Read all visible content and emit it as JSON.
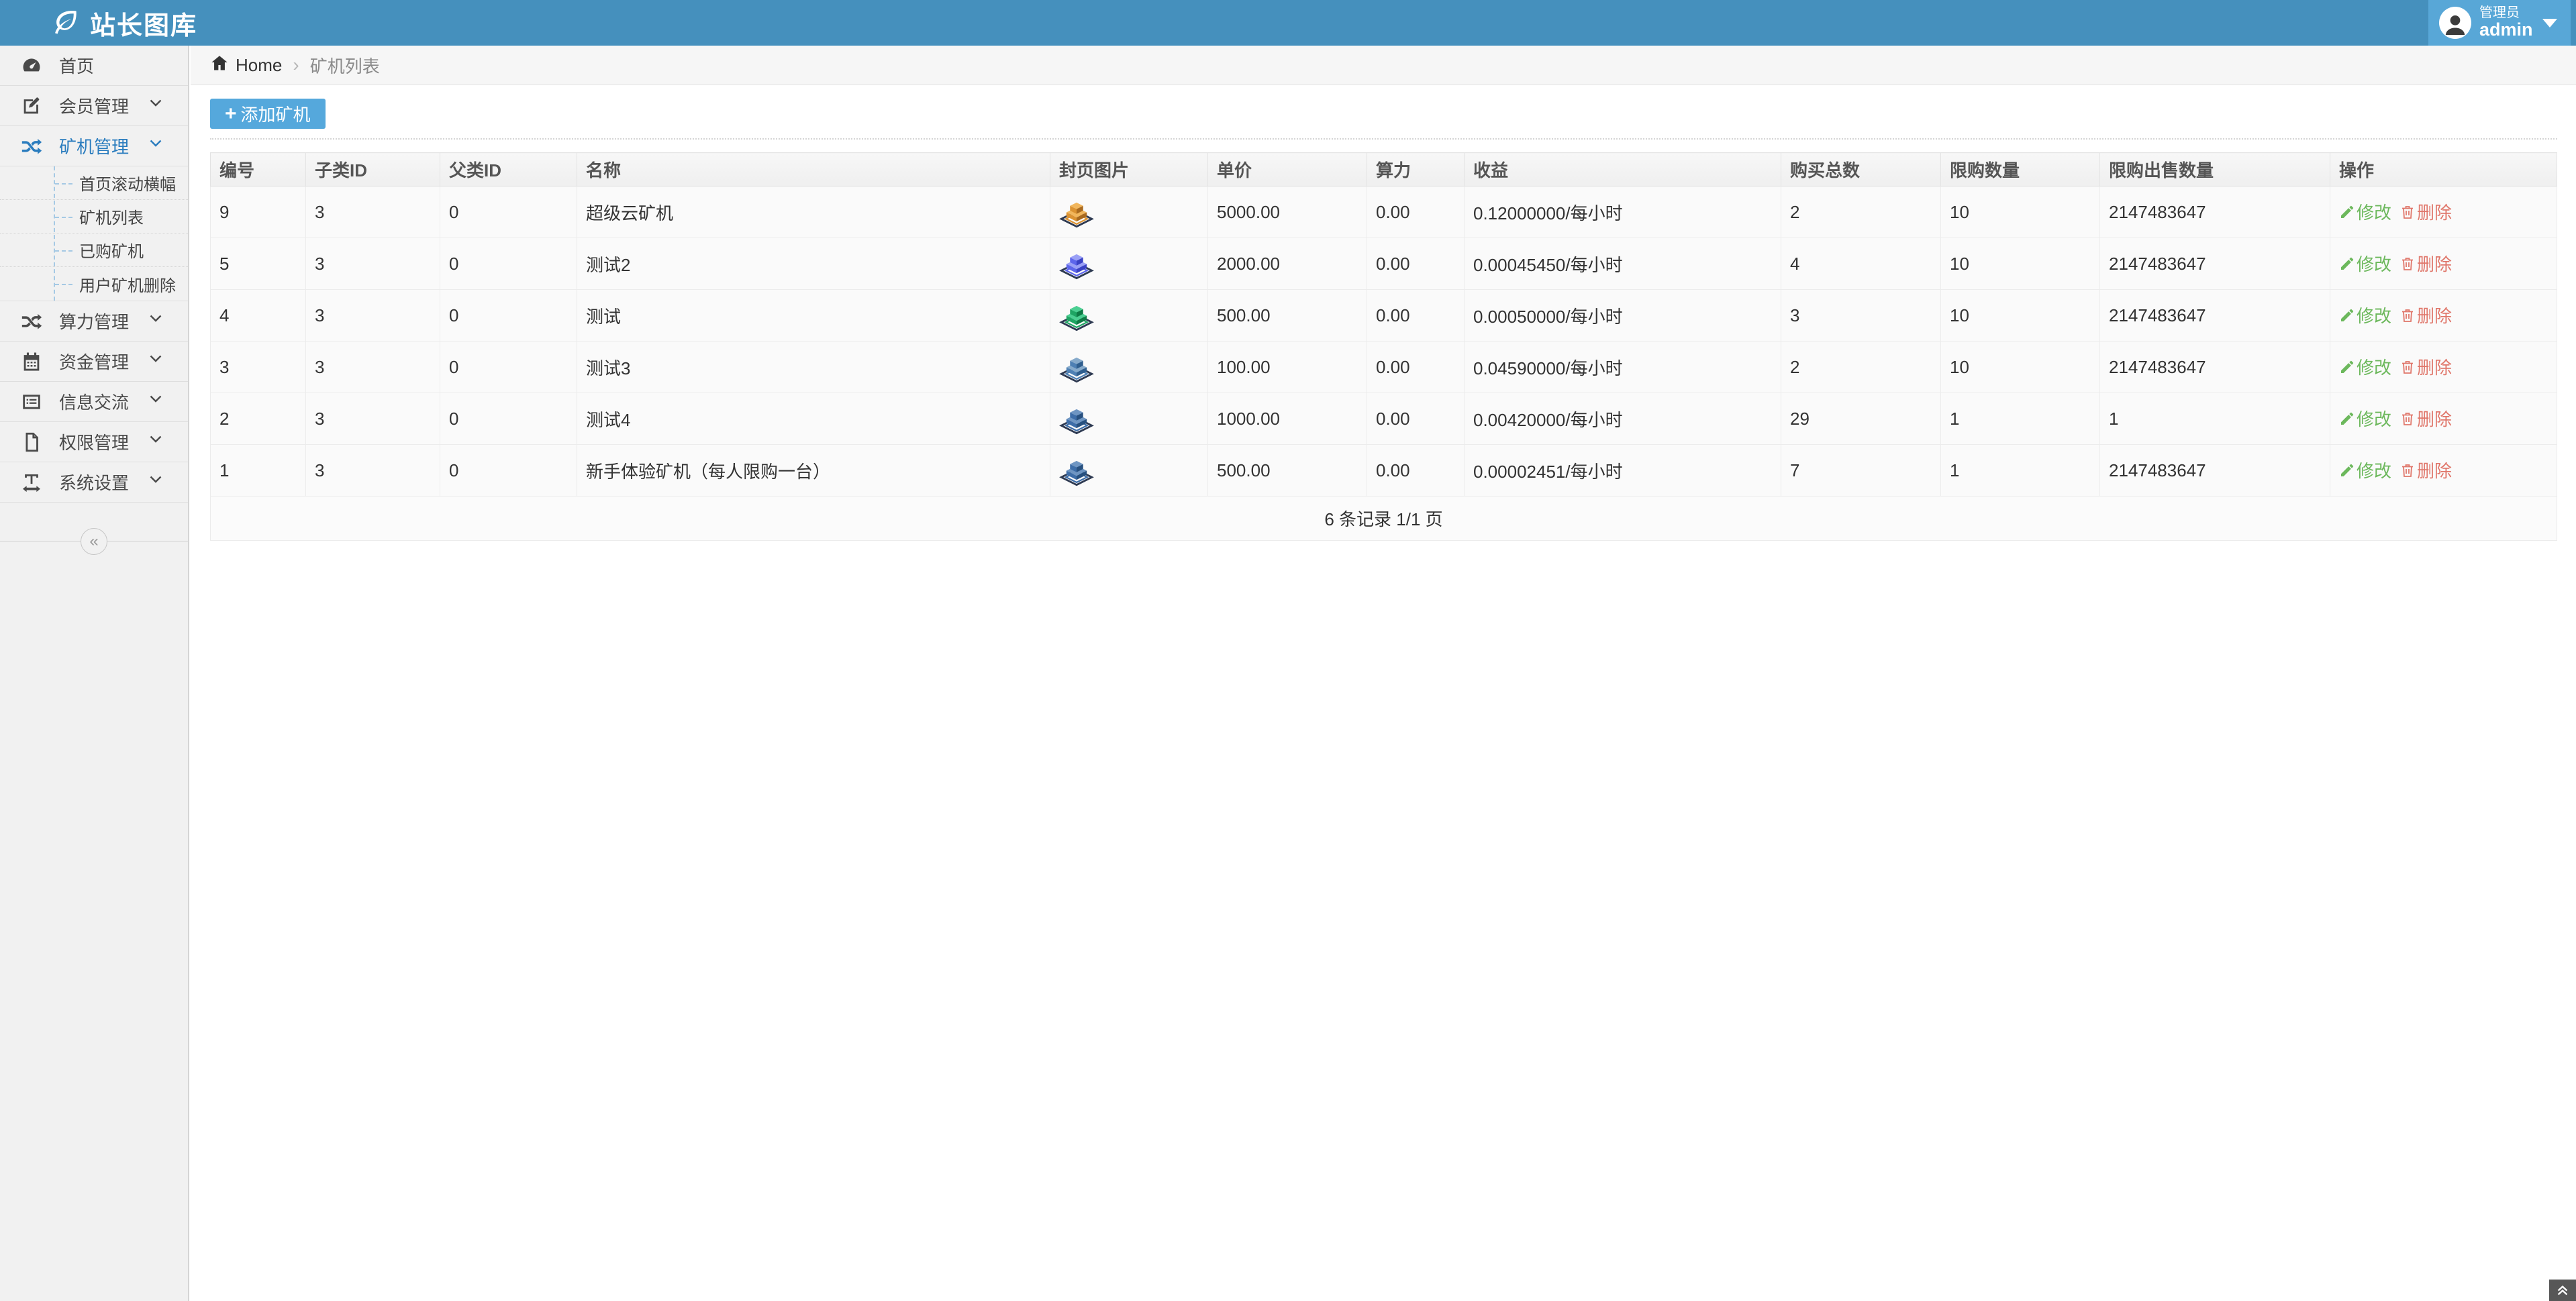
{
  "colors": {
    "header_bg": "#4590BD",
    "userbox_bg": "#58A7D7",
    "sidebar_bg": "#F1F1F1",
    "active_item": "#2A7CBE",
    "button_bg": "#55A8DC",
    "edit_link": "#6CB85C",
    "delete_link": "#E0776B"
  },
  "header": {
    "logo_text": "站长图库",
    "user_role": "管理员",
    "user_name": "admin"
  },
  "sidebar": {
    "items": [
      {
        "label": "首页",
        "icon": "dashboard-icon",
        "chevron": false,
        "active": false,
        "children": []
      },
      {
        "label": "会员管理",
        "icon": "edit-square-icon",
        "chevron": true,
        "active": false,
        "children": []
      },
      {
        "label": "矿机管理",
        "icon": "shuffle-icon",
        "chevron": true,
        "active": true,
        "children": [
          "首页滚动横幅",
          "矿机列表",
          "已购矿机",
          "用户矿机删除"
        ]
      },
      {
        "label": "算力管理",
        "icon": "shuffle-icon",
        "chevron": true,
        "active": false,
        "children": []
      },
      {
        "label": "资金管理",
        "icon": "calendar-icon",
        "chevron": true,
        "active": false,
        "children": []
      },
      {
        "label": "信息交流",
        "icon": "list-icon",
        "chevron": true,
        "active": false,
        "children": []
      },
      {
        "label": "权限管理",
        "icon": "file-icon",
        "chevron": true,
        "active": false,
        "children": []
      },
      {
        "label": "系统设置",
        "icon": "text-width-icon",
        "chevron": true,
        "active": false,
        "children": []
      }
    ],
    "collapse_glyph": "«"
  },
  "breadcrumb": {
    "home": "Home",
    "separator": "›",
    "current": "矿机列表"
  },
  "toolbar": {
    "plus": "+",
    "add_button_label": "添加矿机"
  },
  "table": {
    "columns": [
      "编号",
      "子类ID",
      "父类ID",
      "名称",
      "封页图片",
      "单价",
      "算力",
      "收益",
      "购买总数",
      "限购数量",
      "限购出售数量",
      "操作"
    ],
    "edit_label": "修改",
    "delete_label": "删除",
    "rows": [
      {
        "id": "9",
        "sub_id": "3",
        "parent_id": "0",
        "name": "超级云矿机",
        "cube": {
          "light": "#F1B65C",
          "mid": "#DB9231",
          "dark": "#A96A1F"
        },
        "price": "5000.00",
        "power": "0.00",
        "profit": "0.12000000/每小时",
        "bought": "2",
        "buy_limit": "10",
        "sale_limit": "2147483647"
      },
      {
        "id": "5",
        "sub_id": "3",
        "parent_id": "0",
        "name": "测试2",
        "cube": {
          "light": "#9AA0F6",
          "mid": "#5D66EC",
          "dark": "#3A42C4"
        },
        "price": "2000.00",
        "power": "0.00",
        "profit": "0.00045450/每小时",
        "bought": "4",
        "buy_limit": "10",
        "sale_limit": "2147483647"
      },
      {
        "id": "4",
        "sub_id": "3",
        "parent_id": "0",
        "name": "测试",
        "cube": {
          "light": "#4BCF92",
          "mid": "#1EA563",
          "dark": "#0E7A45"
        },
        "price": "500.00",
        "power": "0.00",
        "profit": "0.00050000/每小时",
        "bought": "3",
        "buy_limit": "10",
        "sale_limit": "2147483647"
      },
      {
        "id": "3",
        "sub_id": "3",
        "parent_id": "0",
        "name": "测试3",
        "cube": {
          "light": "#86AACB",
          "mid": "#4E80B4",
          "dark": "#2F5E8E"
        },
        "price": "100.00",
        "power": "0.00",
        "profit": "0.04590000/每小时",
        "bought": "2",
        "buy_limit": "10",
        "sale_limit": "2147483647"
      },
      {
        "id": "2",
        "sub_id": "3",
        "parent_id": "0",
        "name": "测试4",
        "cube": {
          "light": "#6E95C2",
          "mid": "#3D6DA8",
          "dark": "#27507F"
        },
        "price": "1000.00",
        "power": "0.00",
        "profit": "0.00420000/每小时",
        "bought": "29",
        "buy_limit": "1",
        "sale_limit": "1"
      },
      {
        "id": "1",
        "sub_id": "3",
        "parent_id": "0",
        "name": "新手体验矿机（每人限购一台）",
        "cube": {
          "light": "#6E95C2",
          "mid": "#3D6DA8",
          "dark": "#27507F"
        },
        "price": "500.00",
        "power": "0.00",
        "profit": "0.00002451/每小时",
        "bought": "7",
        "buy_limit": "1",
        "sale_limit": "2147483647"
      }
    ]
  },
  "footer": {
    "summary": "6 条记录 1/1 页"
  }
}
